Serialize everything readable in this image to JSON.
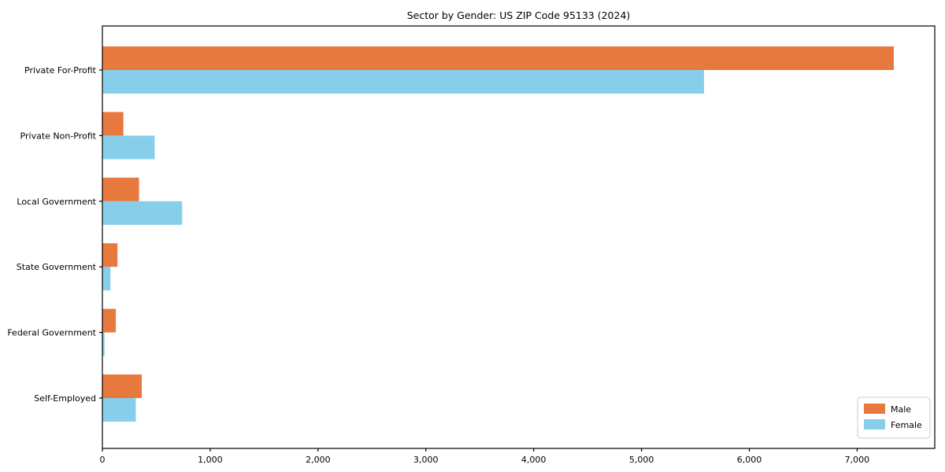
{
  "chart_data": {
    "type": "bar",
    "orientation": "horizontal",
    "title": "Sector by Gender: US ZIP Code 95133 (2024)",
    "categories": [
      "Private For-Profit",
      "Private Non-Profit",
      "Local Government",
      "State Government",
      "Federal Government",
      "Self-Employed"
    ],
    "series": [
      {
        "name": "Male",
        "color": "#e8793e",
        "values": [
          7340,
          195,
          340,
          140,
          125,
          365
        ]
      },
      {
        "name": "Female",
        "color": "#87ceeb",
        "values": [
          5580,
          485,
          740,
          75,
          20,
          310
        ]
      }
    ],
    "xlabel": "",
    "ylabel": "",
    "xlim": [
      0,
      7720
    ],
    "xticks": [
      0,
      1000,
      2000,
      3000,
      4000,
      5000,
      6000,
      7000
    ],
    "xtick_labels": [
      "0",
      "1,000",
      "2,000",
      "3,000",
      "4,000",
      "5,000",
      "6,000",
      "7,000"
    ],
    "grid": false,
    "legend": {
      "position": "lower right",
      "entries": [
        "Male",
        "Female"
      ]
    },
    "colors": {
      "axis": "#000000",
      "legend_border": "#cccccc",
      "background": "#ffffff"
    }
  }
}
